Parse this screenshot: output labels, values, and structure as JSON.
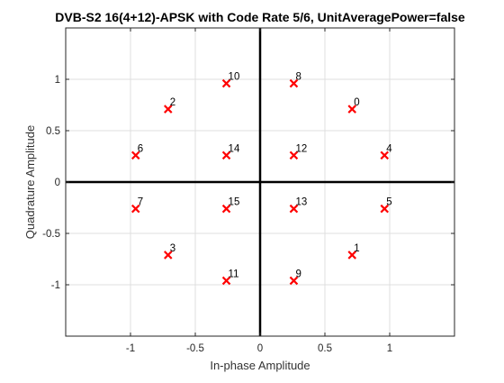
{
  "chart_data": {
    "type": "scatter",
    "title": "DVB-S2 16(4+12)-APSK with Code Rate 5/6, UnitAveragePower=false",
    "xlabel": "In-phase Amplitude",
    "ylabel": "Quadrature Amplitude",
    "xlim": [
      -1.5,
      1.5
    ],
    "ylim": [
      -1.5,
      1.5
    ],
    "xticks": [
      -1,
      -0.5,
      0,
      0.5,
      1
    ],
    "xtick_labels": [
      "-1",
      "-0.5",
      "0",
      "0.5",
      "1"
    ],
    "yticks": [
      -1,
      -0.5,
      0,
      0.5,
      1
    ],
    "ytick_labels": [
      "-1",
      "-0.5",
      "0",
      "0.5",
      "1"
    ],
    "grid": true,
    "marker": "x",
    "marker_color": "#ff0000",
    "points": [
      {
        "label": "0",
        "x": 0.71,
        "y": 0.71
      },
      {
        "label": "1",
        "x": 0.71,
        "y": -0.71
      },
      {
        "label": "2",
        "x": -0.71,
        "y": 0.71
      },
      {
        "label": "3",
        "x": -0.71,
        "y": -0.71
      },
      {
        "label": "4",
        "x": 0.96,
        "y": 0.26
      },
      {
        "label": "5",
        "x": 0.96,
        "y": -0.26
      },
      {
        "label": "6",
        "x": -0.96,
        "y": 0.26
      },
      {
        "label": "7",
        "x": -0.96,
        "y": -0.26
      },
      {
        "label": "8",
        "x": 0.26,
        "y": 0.96
      },
      {
        "label": "9",
        "x": 0.26,
        "y": -0.96
      },
      {
        "label": "10",
        "x": -0.26,
        "y": 0.96
      },
      {
        "label": "11",
        "x": -0.26,
        "y": -0.96
      },
      {
        "label": "12",
        "x": 0.26,
        "y": 0.26
      },
      {
        "label": "13",
        "x": 0.26,
        "y": -0.26
      },
      {
        "label": "14",
        "x": -0.26,
        "y": 0.26
      },
      {
        "label": "15",
        "x": -0.26,
        "y": -0.26
      }
    ]
  }
}
